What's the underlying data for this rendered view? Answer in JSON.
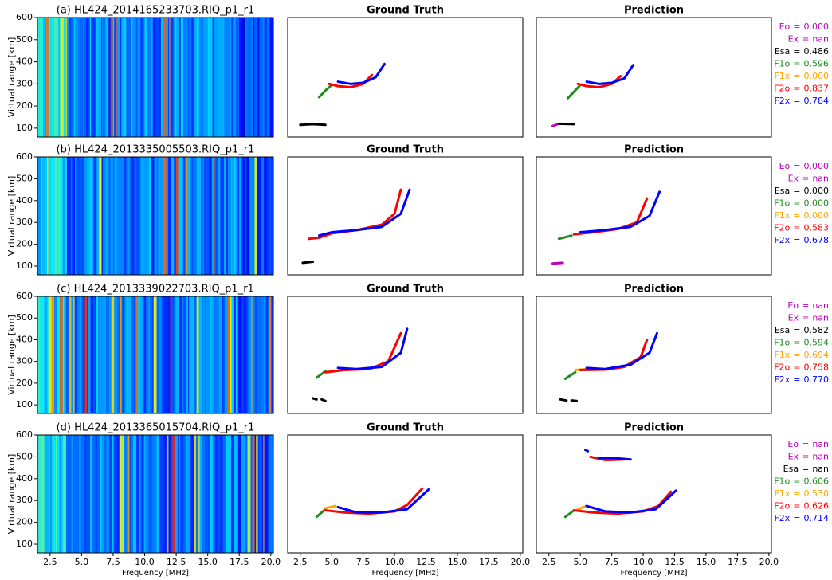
{
  "chart_data": [
    {
      "type": "ionogram",
      "title": "(a) HL424_2014165233703.RIQ_p1_r1",
      "ylabel": "Virtual range [km]",
      "xlim": [
        1.5,
        20.2
      ],
      "ylim": [
        60,
        600
      ],
      "yticks": [
        100,
        200,
        300,
        400,
        500,
        600
      ]
    },
    {
      "type": "trace",
      "title": "Ground Truth",
      "xlim": [
        1.5,
        20.2
      ],
      "ylim": [
        60,
        600
      ],
      "series": [
        {
          "color": "#000000",
          "x": [
            2.5,
            3.5,
            4.5
          ],
          "values": [
            115,
            118,
            115
          ]
        },
        {
          "color": "#228b22",
          "x": [
            4.0,
            4.5,
            5.0
          ],
          "values": [
            240,
            270,
            295
          ]
        },
        {
          "color": "#ff0000",
          "x": [
            4.8,
            5.5,
            6.5,
            7.5,
            8.2
          ],
          "values": [
            300,
            290,
            285,
            300,
            340
          ]
        },
        {
          "color": "#0000ff",
          "x": [
            5.5,
            6.5,
            7.5,
            8.5,
            9.2
          ],
          "values": [
            310,
            300,
            305,
            330,
            390
          ]
        }
      ]
    },
    {
      "type": "trace",
      "title": "Prediction",
      "xlim": [
        1.5,
        20.2
      ],
      "ylim": [
        60,
        600
      ],
      "series": [
        {
          "color": "#bf00bf",
          "x": [
            2.8,
            3.2
          ],
          "values": [
            110,
            118
          ]
        },
        {
          "color": "#000000",
          "x": [
            3.3,
            4.5
          ],
          "values": [
            120,
            118
          ]
        },
        {
          "color": "#228b22",
          "x": [
            4.0,
            4.5,
            5.0
          ],
          "values": [
            235,
            265,
            295
          ]
        },
        {
          "color": "#ff0000",
          "x": [
            4.8,
            5.5,
            6.5,
            7.5,
            8.2
          ],
          "values": [
            300,
            290,
            285,
            300,
            335
          ]
        },
        {
          "color": "#0000ff",
          "x": [
            5.5,
            6.5,
            7.5,
            8.5,
            9.2
          ],
          "values": [
            310,
            300,
            305,
            325,
            385
          ]
        }
      ]
    },
    {
      "type": "scores",
      "separator": "=",
      "categories": [
        "Eo",
        "Ex",
        "Esa",
        "F1o",
        "F1x",
        "F2o",
        "F2x"
      ],
      "colors": [
        "#bf00bf",
        "#bf00bf",
        "#000000",
        "#228b22",
        "#ffa500",
        "#ff0000",
        "#0000ff"
      ],
      "values": [
        0,
        null,
        0.486,
        0.596,
        0,
        0.837,
        0.784
      ],
      "value_labels": [
        "0.000",
        "nan",
        "0.486",
        "0.596",
        "0.000",
        "0.837",
        "0.784"
      ]
    },
    {
      "type": "ionogram",
      "title": "(b) HL424_2013335005503.RIQ_p1_r1",
      "ylabel": "Virtual range [km]",
      "xlim": [
        1.5,
        20.2
      ],
      "ylim": [
        60,
        600
      ],
      "yticks": [
        100,
        200,
        300,
        400,
        500,
        600
      ]
    },
    {
      "type": "trace",
      "title": "Ground Truth",
      "xlim": [
        1.5,
        20.2
      ],
      "ylim": [
        60,
        600
      ],
      "series": [
        {
          "color": "#000000",
          "x": [
            2.7,
            3.5
          ],
          "values": [
            115,
            120
          ]
        },
        {
          "color": "#ff0000",
          "x": [
            3.2,
            4,
            5,
            7,
            9,
            10,
            10.5
          ],
          "values": [
            225,
            230,
            250,
            265,
            290,
            340,
            450
          ]
        },
        {
          "color": "#0000ff",
          "x": [
            4,
            5,
            7,
            9,
            10.5,
            11.2
          ],
          "values": [
            240,
            255,
            265,
            280,
            340,
            450
          ]
        }
      ]
    },
    {
      "type": "trace",
      "title": "Prediction",
      "xlim": [
        1.5,
        20.2
      ],
      "ylim": [
        60,
        600
      ],
      "series": [
        {
          "color": "#bf00bf",
          "x": [
            2.8,
            3.6
          ],
          "values": [
            112,
            115
          ]
        },
        {
          "color": "#228b22",
          "x": [
            3.3,
            4.3
          ],
          "values": [
            225,
            240
          ]
        },
        {
          "color": "#ff0000",
          "x": [
            4.5,
            6,
            8,
            9.5,
            10.3
          ],
          "values": [
            245,
            255,
            270,
            300,
            410
          ]
        },
        {
          "color": "#0000ff",
          "x": [
            5,
            7,
            9,
            10.5,
            11.3
          ],
          "values": [
            255,
            265,
            280,
            330,
            440
          ]
        }
      ]
    },
    {
      "type": "scores",
      "separator": "=",
      "categories": [
        "Eo",
        "Ex",
        "Esa",
        "F1o",
        "F1x",
        "F2o",
        "F2x"
      ],
      "colors": [
        "#bf00bf",
        "#bf00bf",
        "#000000",
        "#228b22",
        "#ffa500",
        "#ff0000",
        "#0000ff"
      ],
      "values": [
        0,
        null,
        0,
        0,
        0,
        0.583,
        0.678
      ],
      "value_labels": [
        "0.000",
        "nan",
        "0.000",
        "0.000",
        "0.000",
        "0.583",
        "0.678"
      ]
    },
    {
      "type": "ionogram",
      "title": "(c) HL424_2013339022703.RIQ_p1_r1",
      "ylabel": "Virtual range [km]",
      "xlim": [
        1.5,
        20.2
      ],
      "ylim": [
        60,
        600
      ],
      "yticks": [
        100,
        200,
        300,
        400,
        500,
        600
      ]
    },
    {
      "type": "trace",
      "title": "Ground Truth",
      "xlim": [
        1.5,
        20.2
      ],
      "ylim": [
        60,
        600
      ],
      "series": [
        {
          "color": "#000000",
          "x": [
            3.5,
            3.8
          ],
          "values": [
            130,
            125
          ]
        },
        {
          "color": "#000000",
          "x": [
            4.2,
            4.5
          ],
          "values": [
            125,
            118
          ]
        },
        {
          "color": "#228b22",
          "x": [
            3.8,
            4.5
          ],
          "values": [
            225,
            255
          ]
        },
        {
          "color": "#ff0000",
          "x": [
            4.5,
            6,
            8,
            9.5,
            10.5
          ],
          "values": [
            250,
            260,
            265,
            300,
            430
          ]
        },
        {
          "color": "#0000ff",
          "x": [
            5.5,
            7,
            9,
            10.5,
            11
          ],
          "values": [
            270,
            265,
            275,
            340,
            450
          ]
        }
      ]
    },
    {
      "type": "trace",
      "title": "Prediction",
      "xlim": [
        1.5,
        20.2
      ],
      "ylim": [
        60,
        600
      ],
      "series": [
        {
          "color": "#000000",
          "x": [
            3.4,
            3.9
          ],
          "values": [
            125,
            120
          ]
        },
        {
          "color": "#000000",
          "x": [
            4.3,
            4.7
          ],
          "values": [
            120,
            118
          ]
        },
        {
          "color": "#228b22",
          "x": [
            3.8,
            4.6
          ],
          "values": [
            220,
            250
          ]
        },
        {
          "color": "#ffa500",
          "x": [
            4.6,
            5.5
          ],
          "values": [
            260,
            265
          ]
        },
        {
          "color": "#ff0000",
          "x": [
            5,
            7,
            8.5,
            9.8,
            10.3
          ],
          "values": [
            260,
            262,
            275,
            320,
            400
          ]
        },
        {
          "color": "#0000ff",
          "x": [
            5.5,
            7,
            9,
            10.5,
            11.1
          ],
          "values": [
            270,
            265,
            285,
            340,
            430
          ]
        }
      ]
    },
    {
      "type": "scores",
      "separator": "=",
      "categories": [
        "Eo",
        "Ex",
        "Esa",
        "F1o",
        "F1x",
        "F2o",
        "F2x"
      ],
      "colors": [
        "#bf00bf",
        "#bf00bf",
        "#000000",
        "#228b22",
        "#ffa500",
        "#ff0000",
        "#0000ff"
      ],
      "values": [
        null,
        null,
        0.582,
        0.594,
        0.694,
        0.758,
        0.77
      ],
      "value_labels": [
        "nan",
        "nan",
        "0.582",
        "0.594",
        "0.694",
        "0.758",
        "0.770"
      ]
    },
    {
      "type": "ionogram",
      "title": "(d) HL424_2013365015704.RIQ_p1_r1",
      "ylabel": "Virtual range [km]",
      "xlabel": "Frequency [MHz]",
      "xlim": [
        1.5,
        20.2
      ],
      "ylim": [
        60,
        600
      ],
      "yticks": [
        100,
        200,
        300,
        400,
        500,
        600
      ],
      "xticks": [
        2.5,
        {
          "value": 5,
          "label": "5.0"
        },
        7.5,
        {
          "value": 10,
          "label": "10.0"
        },
        12.5,
        {
          "value": 15,
          "label": "15.0"
        },
        17.5,
        {
          "value": 20,
          "label": "20.0"
        }
      ]
    },
    {
      "type": "trace",
      "title": "Ground Truth",
      "xlabel": "Frequency [MHz]",
      "xlim": [
        1.5,
        20.2
      ],
      "ylim": [
        60,
        600
      ],
      "xticks": [
        2.5,
        {
          "value": 5,
          "label": "5.0"
        },
        7.5,
        {
          "value": 10,
          "label": "10.0"
        },
        12.5,
        {
          "value": 15,
          "label": "15.0"
        },
        17.5,
        {
          "value": 20,
          "label": "20.0"
        }
      ],
      "series": [
        {
          "color": "#228b22",
          "x": [
            3.8,
            4.5
          ],
          "values": [
            225,
            260
          ]
        },
        {
          "color": "#ffa500",
          "x": [
            4.5,
            5.3
          ],
          "values": [
            265,
            275
          ]
        },
        {
          "color": "#ff0000",
          "x": [
            4.5,
            6,
            8,
            10,
            11,
            12.2
          ],
          "values": [
            255,
            245,
            240,
            250,
            280,
            355
          ]
        },
        {
          "color": "#0000ff",
          "x": [
            5.5,
            7,
            9,
            11,
            12.7
          ],
          "values": [
            270,
            245,
            245,
            260,
            350
          ]
        }
      ]
    },
    {
      "type": "trace",
      "title": "Prediction",
      "xlabel": "Frequency [MHz]",
      "xlim": [
        1.5,
        20.2
      ],
      "ylim": [
        60,
        600
      ],
      "xticks": [
        2.5,
        {
          "value": 5,
          "label": "5.0"
        },
        7.5,
        {
          "value": 10,
          "label": "10.0"
        },
        12.5,
        {
          "value": 15,
          "label": "15.0"
        },
        17.5,
        {
          "value": 20,
          "label": "20.0"
        }
      ],
      "series": [
        {
          "color": "#228b22",
          "x": [
            3.8,
            4.5
          ],
          "values": [
            225,
            255
          ]
        },
        {
          "color": "#ffa500",
          "x": [
            4.8,
            5.5
          ],
          "values": [
            260,
            275
          ]
        },
        {
          "color": "#ff0000",
          "x": [
            4.5,
            6,
            8,
            10,
            11.2,
            12.2
          ],
          "values": [
            255,
            245,
            240,
            250,
            275,
            340
          ]
        },
        {
          "color": "#0000ff",
          "x": [
            5.5,
            7,
            9,
            11,
            12.6
          ],
          "values": [
            275,
            250,
            245,
            260,
            345
          ]
        },
        {
          "color": "#ff0000",
          "x": [
            5.8,
            7,
            8.5
          ],
          "values": [
            500,
            485,
            488
          ]
        },
        {
          "color": "#0000ff",
          "x": [
            6.5,
            7.5,
            9
          ],
          "values": [
            495,
            495,
            488
          ]
        },
        {
          "color": "#0000ff",
          "x": [
            5.4,
            5.6
          ],
          "values": [
            532,
            526
          ]
        }
      ]
    },
    {
      "type": "scores",
      "separator": "=",
      "categories": [
        "Eo",
        "Ex",
        "Esa",
        "F1o",
        "F1x",
        "F2o",
        "F2x"
      ],
      "colors": [
        "#bf00bf",
        "#bf00bf",
        "#000000",
        "#228b22",
        "#ffa500",
        "#ff0000",
        "#0000ff"
      ],
      "values": [
        null,
        null,
        null,
        0.606,
        0.53,
        0.626,
        0.714
      ],
      "value_labels": [
        "nan",
        "nan",
        "nan",
        "0.606",
        "0.530",
        "0.626",
        "0.714"
      ]
    }
  ]
}
